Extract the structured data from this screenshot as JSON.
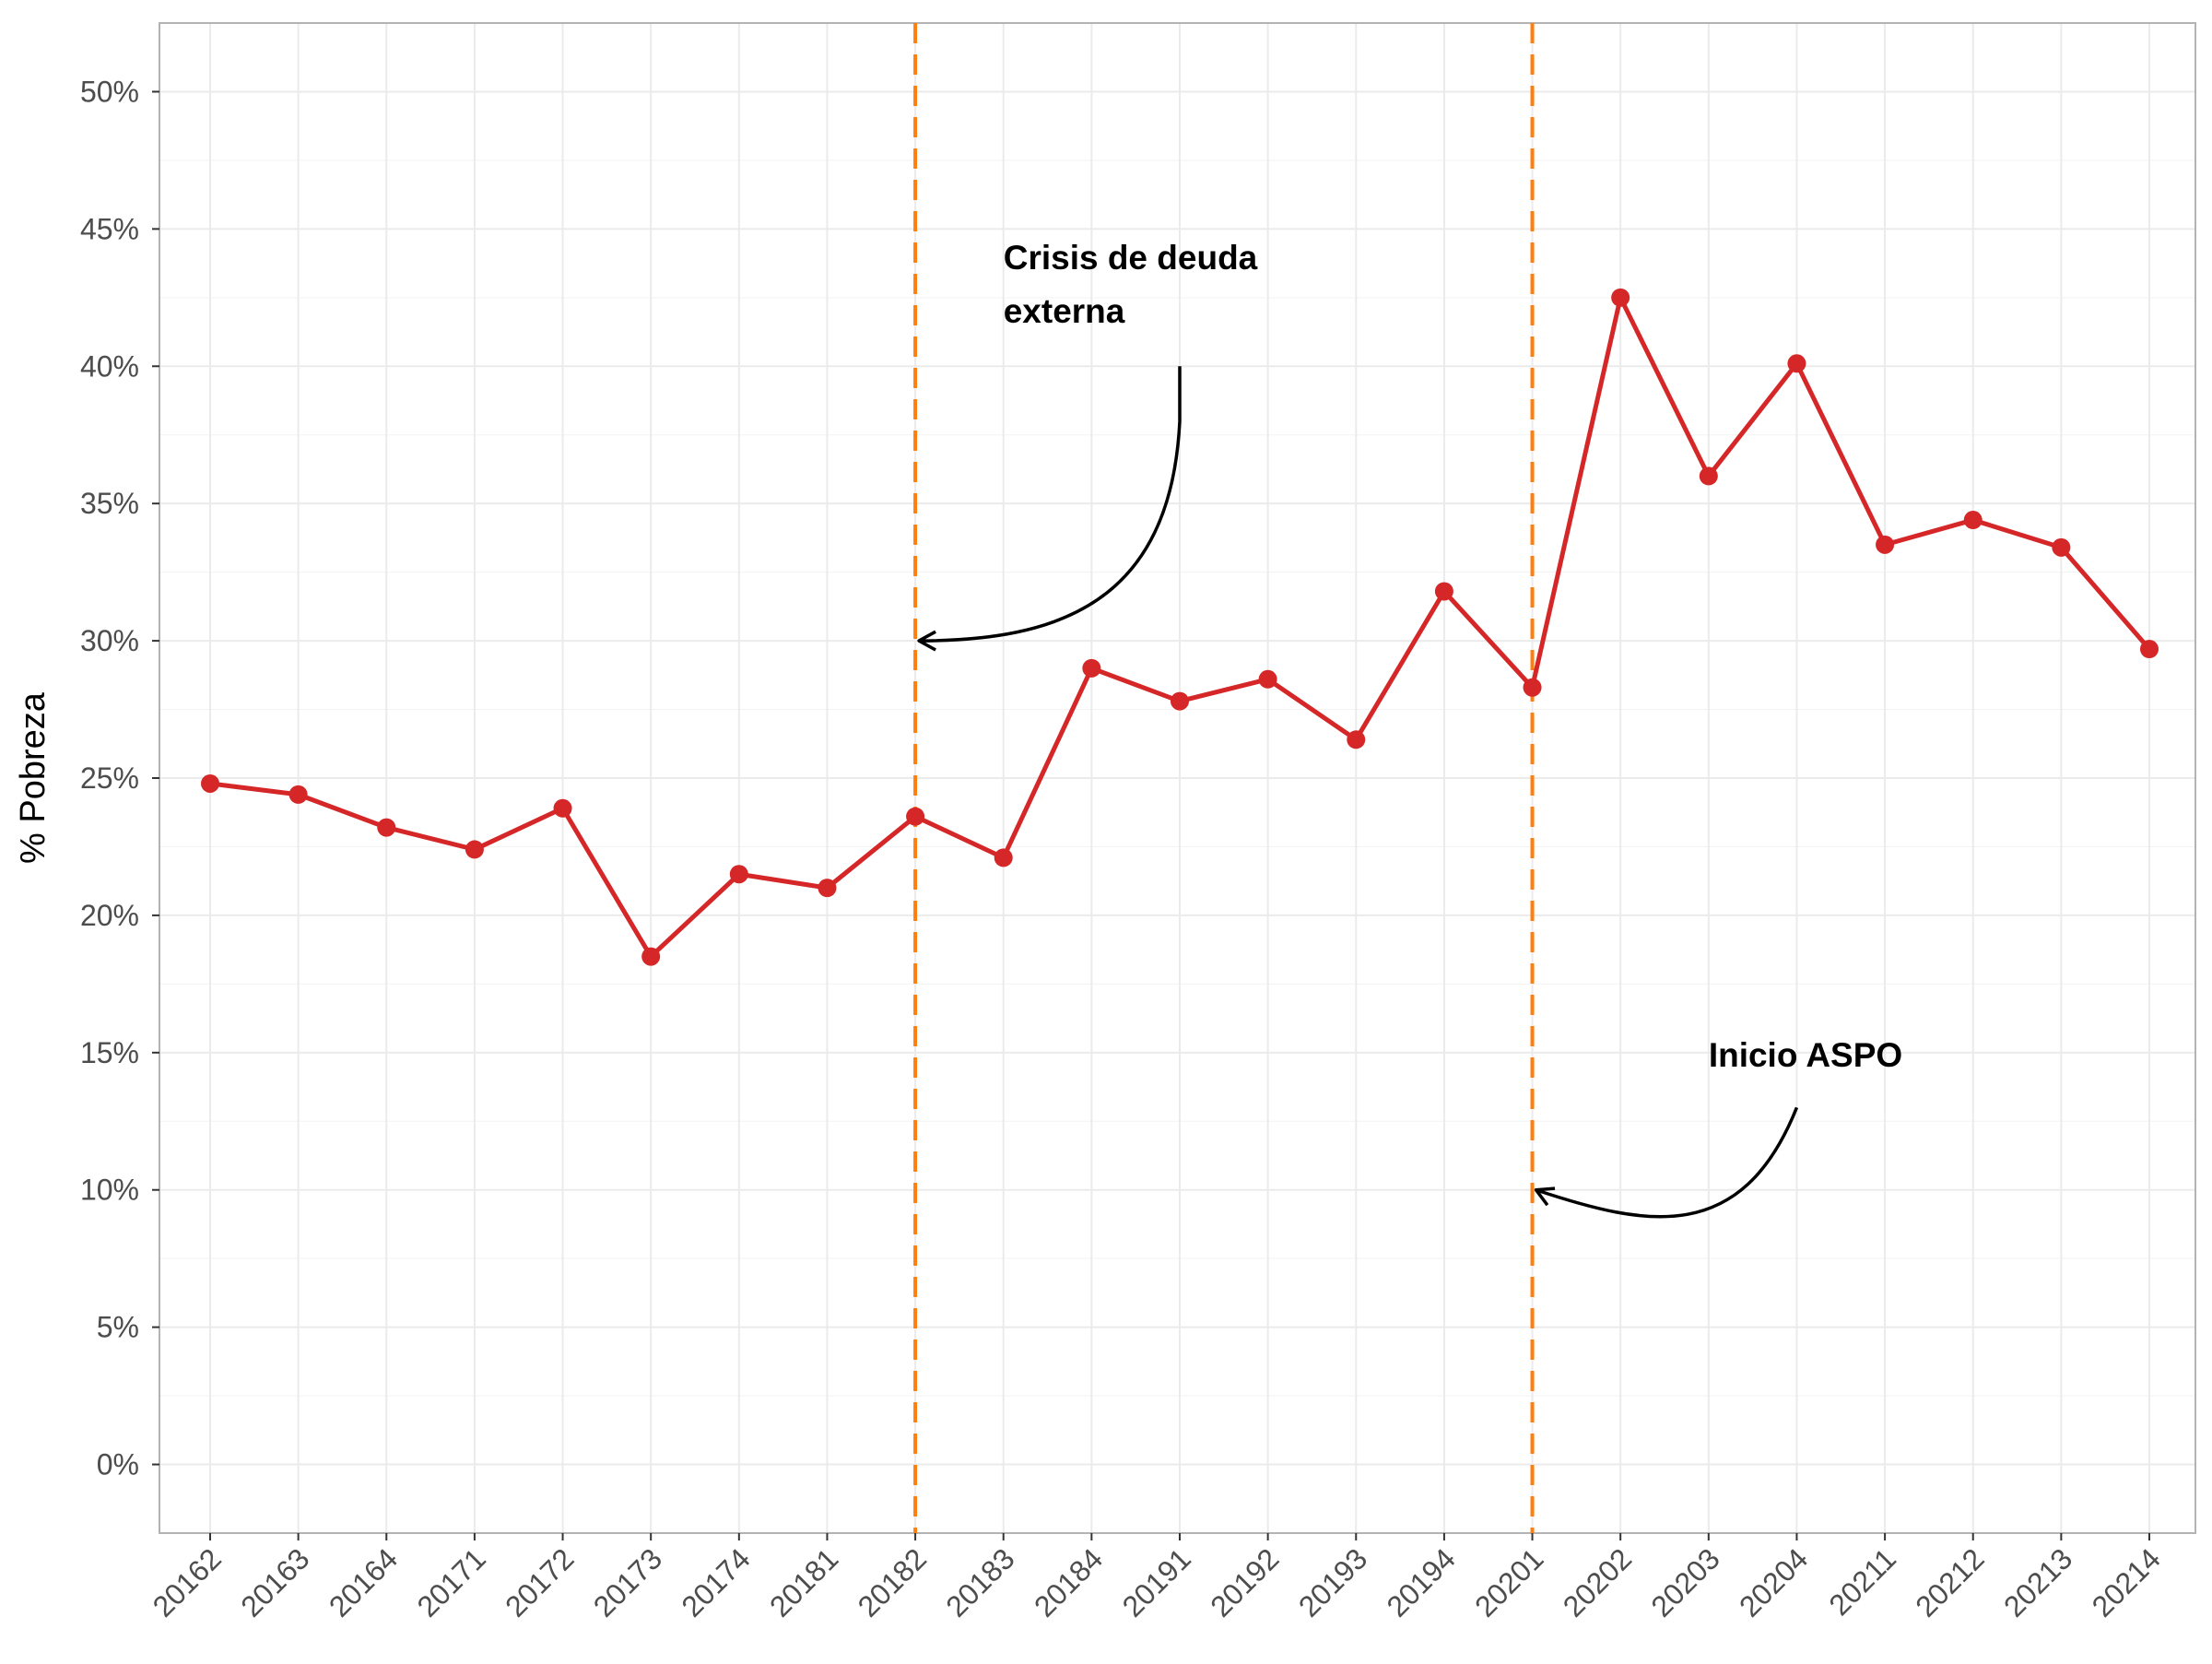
{
  "chart_data": {
    "type": "line",
    "xlabel": "",
    "ylabel": "% Pobreza",
    "ylim": [
      -2.5,
      52.5
    ],
    "y_ticks": [
      0,
      5,
      10,
      15,
      20,
      25,
      30,
      35,
      40,
      45,
      50
    ],
    "y_tick_labels": [
      "0%",
      "5%",
      "10%",
      "15%",
      "20%",
      "25%",
      "30%",
      "35%",
      "40%",
      "45%",
      "50%"
    ],
    "grid": true,
    "categories": [
      "20162",
      "20163",
      "20164",
      "20171",
      "20172",
      "20173",
      "20174",
      "20181",
      "20182",
      "20183",
      "20184",
      "20191",
      "20192",
      "20193",
      "20194",
      "20201",
      "20202",
      "20203",
      "20204",
      "20211",
      "20212",
      "20213",
      "20214"
    ],
    "series": [
      {
        "color": "#d62728",
        "values": [
          24.8,
          24.4,
          23.2,
          22.4,
          23.9,
          18.5,
          21.5,
          21.0,
          23.6,
          22.1,
          29.0,
          27.8,
          28.6,
          26.4,
          31.8,
          28.3,
          42.5,
          36.0,
          40.1,
          33.5,
          34.4,
          33.4,
          29.7
        ]
      }
    ],
    "vlines": [
      {
        "category": "20182",
        "color": "#ff7f0e",
        "style": "dashed"
      },
      {
        "category": "20201",
        "color": "#ff7f0e",
        "style": "dashed"
      }
    ],
    "annotations": [
      {
        "lines": [
          "Crisis de deuda",
          "externa"
        ],
        "arrow_to": {
          "category": "20182",
          "y": 30
        }
      },
      {
        "lines": [
          "Inicio ASPO"
        ],
        "arrow_to": {
          "category": "20201",
          "y": 10
        }
      }
    ]
  }
}
